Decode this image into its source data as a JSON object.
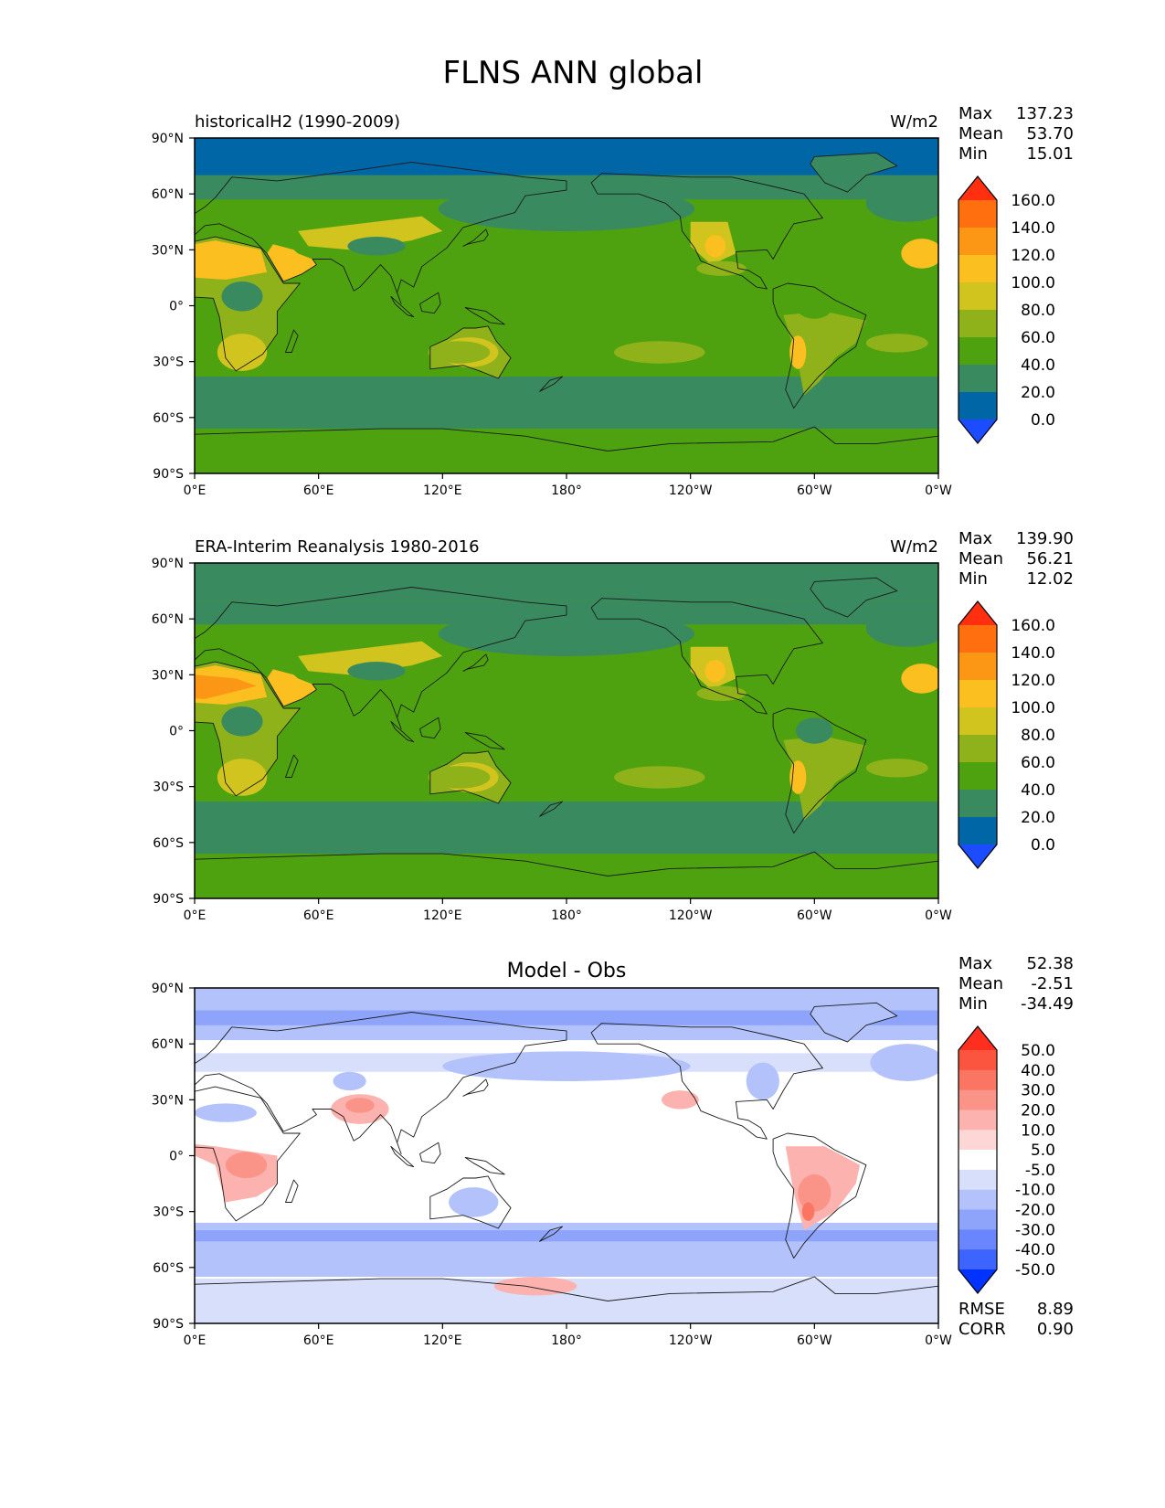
{
  "title": "FLNS ANN global",
  "x_tick_labels": [
    "0°E",
    "60°E",
    "120°E",
    "180°",
    "120°W",
    "60°W",
    "0°W"
  ],
  "y_tick_labels": [
    "90°N",
    "60°N",
    "30°N",
    "0°",
    "30°S",
    "60°S",
    "90°S"
  ],
  "stat_labels": {
    "max": "Max",
    "mean": "Mean",
    "min": "Min",
    "rmse": "RMSE",
    "corr": "CORR"
  },
  "panels": [
    {
      "id": "test",
      "left_title": "historicalH2 (1990-2009)",
      "center_title": "",
      "units": "W/m2",
      "stats": {
        "max": "137.23",
        "mean": "53.70",
        "min": "15.01"
      },
      "colorbar": {
        "colors": [
          "#1b4cff",
          "#0066a6",
          "#3a8a5f",
          "#4ea20f",
          "#8fb21a",
          "#d2c41e",
          "#fbbf1f",
          "#fb9715",
          "#ff6e0f",
          "#ff2f0f"
        ],
        "labels": [
          "0.0",
          "20.0",
          "40.0",
          "60.0",
          "80.0",
          "100.0",
          "120.0",
          "140.0",
          "160.0"
        ]
      }
    },
    {
      "id": "reference",
      "left_title": "ERA-Interim Reanalysis 1980-2016",
      "center_title": "",
      "units": "W/m2",
      "stats": {
        "max": "139.90",
        "mean": "56.21",
        "min": "12.02"
      },
      "colorbar": {
        "colors": [
          "#1b4cff",
          "#0066a6",
          "#3a8a5f",
          "#4ea20f",
          "#8fb21a",
          "#d2c41e",
          "#fbbf1f",
          "#fb9715",
          "#ff6e0f",
          "#ff2f0f"
        ],
        "labels": [
          "0.0",
          "20.0",
          "40.0",
          "60.0",
          "80.0",
          "100.0",
          "120.0",
          "140.0",
          "160.0"
        ]
      }
    },
    {
      "id": "diff",
      "left_title": "",
      "center_title": "Model - Obs",
      "units": "",
      "stats": {
        "max": "52.38",
        "mean": "-2.51",
        "min": "-34.49",
        "rmse": "8.89",
        "corr": "0.90"
      },
      "colorbar": {
        "colors": [
          "#0033ff",
          "#3e64ff",
          "#6a86ff",
          "#8ea4fb",
          "#b3c2fb",
          "#d7dffb",
          "#ffffff",
          "#fdd6d6",
          "#fcb2ae",
          "#fb9488",
          "#fb7563",
          "#fb5540",
          "#ff2e1f"
        ],
        "labels": [
          "-50.0",
          "-40.0",
          "-30.0",
          "-20.0",
          "-10.0",
          "-5.0",
          "5.0",
          "10.0",
          "20.0",
          "30.0",
          "40.0",
          "50.0"
        ]
      }
    }
  ]
}
